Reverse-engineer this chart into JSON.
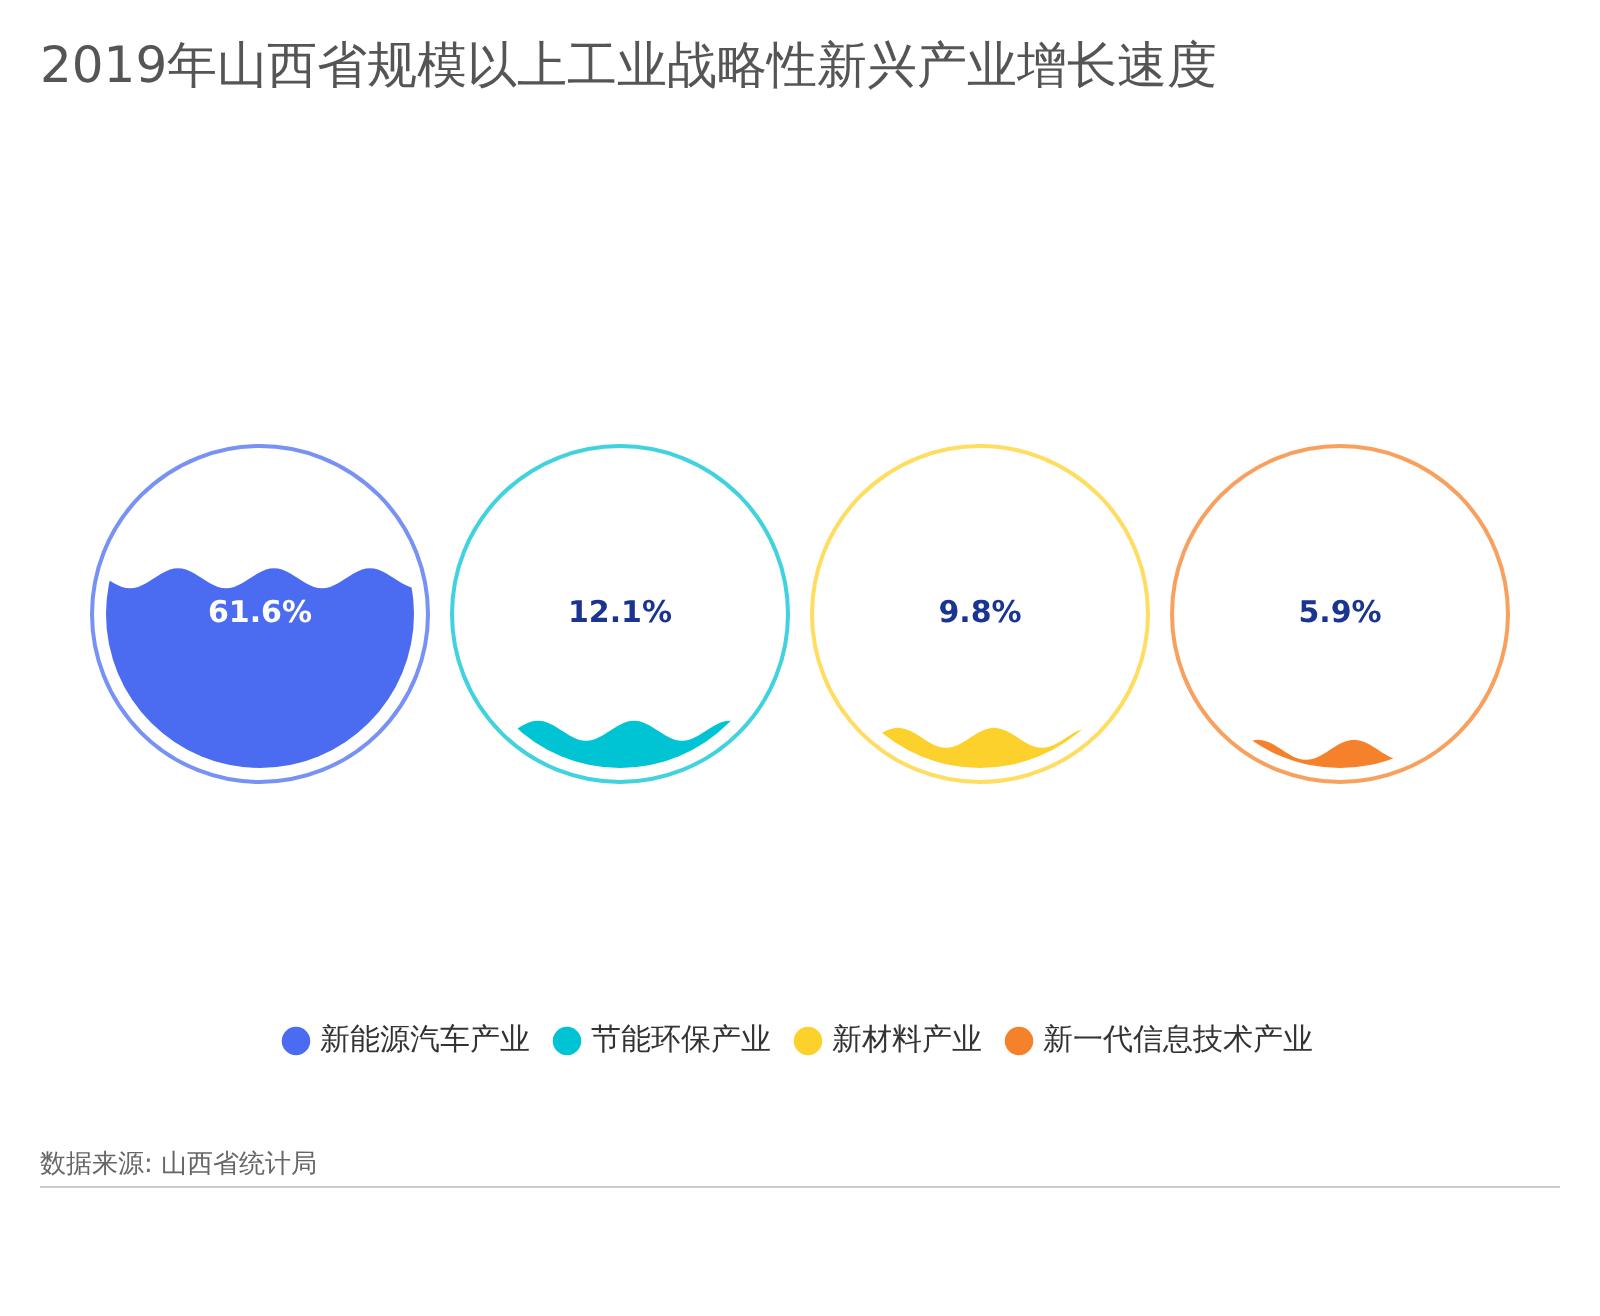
{
  "chart_data": {
    "type": "other",
    "title": "2019年山西省规模以上工业战略性新兴产业增长速度",
    "categories": [
      "新能源汽车产业",
      "节能环保产业",
      "新材料产业",
      "新一代信息技术产业"
    ],
    "values": [
      61.6,
      12.1,
      9.8,
      5.9
    ],
    "value_labels": [
      "61.6%",
      "12.1%",
      "9.8%",
      "5.9%"
    ],
    "colors": [
      "#4b6cf0",
      "#00c3d3",
      "#fdd12c",
      "#f5822a"
    ],
    "annotations": [
      "数据来源: 山西省统计局"
    ]
  }
}
